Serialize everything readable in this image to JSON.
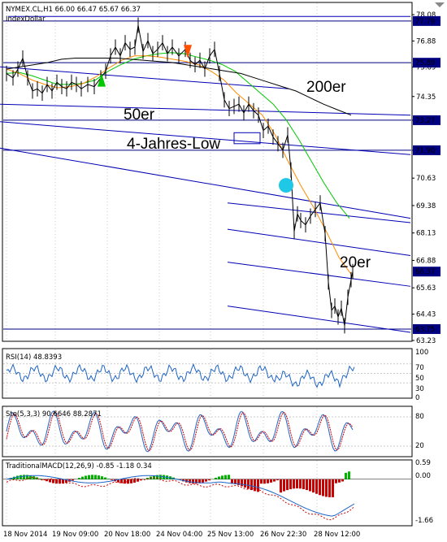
{
  "header": {
    "symbol_line": "NYMEX.CL,H1  66.00 66.47 65.67 66.37",
    "indicator": "IndexDollar"
  },
  "colors": {
    "channel": "#0000b4",
    "ma20": "#00c800",
    "ma50": "#ff8c00",
    "ma200": "#000000",
    "hline": "#000080",
    "price_tag": "#000080",
    "indicator_line": "#1e64c8",
    "stoch_signal": "#c80000",
    "hist_up": "#00b400",
    "hist_down": "#c80000",
    "marker_dot": "#1ec8e6",
    "arrow_up": "#00c800",
    "arrow_down": "#ff5000"
  },
  "annotations": {
    "ma50": "50er",
    "ma200": "200er",
    "ma20": "20er",
    "low": "4-Jahres-Low"
  },
  "chart_data": {
    "type": "line",
    "instrument": "NYMEX.CL H1",
    "ohlc_last": {
      "open": 66.0,
      "high": 66.47,
      "low": 65.67,
      "close": 66.37
    },
    "x_ticks": [
      "18 Nov 2014",
      "19 Nov 09:00",
      "20 Nov 18:00",
      "24 Nov 04:00",
      "25 Nov 13:00",
      "26 Nov 22:30",
      "28 Nov 12:00"
    ],
    "ylim": [
      63.23,
      78.6
    ],
    "y_ticks": [
      78.08,
      76.88,
      75.69,
      74.35,
      73.27,
      71.9,
      70.63,
      69.38,
      68.13,
      66.88,
      65.63,
      64.43,
      63.23
    ],
    "price_tags": [
      {
        "label": "77.79",
        "value": 77.79
      },
      {
        "label": "75.89",
        "value": 75.89
      },
      {
        "label": "73.27",
        "value": 73.27
      },
      {
        "label": "71.90",
        "value": 71.9
      },
      {
        "label": "66.37",
        "value": 66.37
      },
      {
        "label": "63.75",
        "value": 63.75
      }
    ],
    "series": [
      {
        "name": "20er",
        "values": [
          75.4,
          75.45,
          75.3,
          75.1,
          74.9,
          74.9,
          74.95,
          75.1,
          75.5,
          75.8,
          76.05,
          76.2,
          76.3,
          76.35,
          76.3,
          76.15,
          76.0,
          75.8,
          75.5,
          75.0,
          74.5,
          74.0,
          73.3,
          72.4,
          71.4,
          70.4,
          69.5,
          68.8
        ]
      },
      {
        "name": "50er",
        "values": [
          75.6,
          75.4,
          75.1,
          74.9,
          74.75,
          74.8,
          74.95,
          75.25,
          75.65,
          76.0,
          76.2,
          76.2,
          76.15,
          76.05,
          75.95,
          75.8,
          75.5,
          75.1,
          74.5,
          74.0,
          73.5,
          72.6,
          71.4,
          70.3,
          69.3,
          68.2,
          67.0,
          66.2
        ]
      },
      {
        "name": "200er",
        "values": [
          75.6,
          75.7,
          75.8,
          75.9,
          76.05,
          76.1,
          76.1,
          76.1,
          76.1,
          76.05,
          76.0,
          75.95,
          75.9,
          75.8,
          75.7,
          75.6,
          75.5,
          75.4,
          75.2,
          75.0,
          74.8,
          74.6,
          74.3,
          74.0,
          73.75,
          73.5
        ]
      }
    ],
    "channel_lines": [
      {
        "from": [
          0,
          75.7
        ],
        "to": [
          355,
          74.7
        ]
      },
      {
        "from": [
          0,
          74.0
        ],
        "to": [
          505,
          73.5
        ]
      },
      {
        "from": [
          0,
          73.2
        ],
        "to": [
          505,
          71.7
        ]
      },
      {
        "from": [
          0,
          72.0
        ],
        "to": [
          505,
          68.8
        ]
      },
      {
        "from": [
          10,
          78.0
        ],
        "to": [
          505,
          78.0
        ]
      },
      {
        "from": [
          280,
          69.5
        ],
        "to": [
          505,
          68.6
        ]
      },
      {
        "from": [
          280,
          68.3
        ],
        "to": [
          505,
          67.1
        ]
      },
      {
        "from": [
          280,
          66.8
        ],
        "to": [
          505,
          65.7
        ]
      },
      {
        "from": [
          280,
          64.8
        ],
        "to": [
          505,
          63.6
        ]
      }
    ],
    "subcharts": [
      {
        "name": "RSI(14)",
        "label": "RSI(14) 48.8393",
        "value": 48.8393,
        "levels": [
          70,
          50,
          30
        ],
        "level_labels": [
          "100",
          "70",
          "50",
          "30",
          "0"
        ],
        "ylim": [
          0,
          100
        ]
      },
      {
        "name": "Sto(5,3,3)",
        "label": "Sto(5,3,3) 90.6646 88.2871",
        "values": [
          90.6646,
          88.2871
        ],
        "level_labels": [
          "80",
          "20"
        ],
        "ylim": [
          0,
          100
        ]
      },
      {
        "name": "TraditionalMACD(12,26,9)",
        "label": "TraditionalMACD(12,26,9) -0.85 -1.18 0.34",
        "values": [
          -0.85,
          -1.18,
          0.34
        ],
        "level_labels": [
          "0.59",
          "0.00",
          "-1.66"
        ],
        "ylim": [
          -1.85,
          0.75
        ]
      }
    ]
  }
}
